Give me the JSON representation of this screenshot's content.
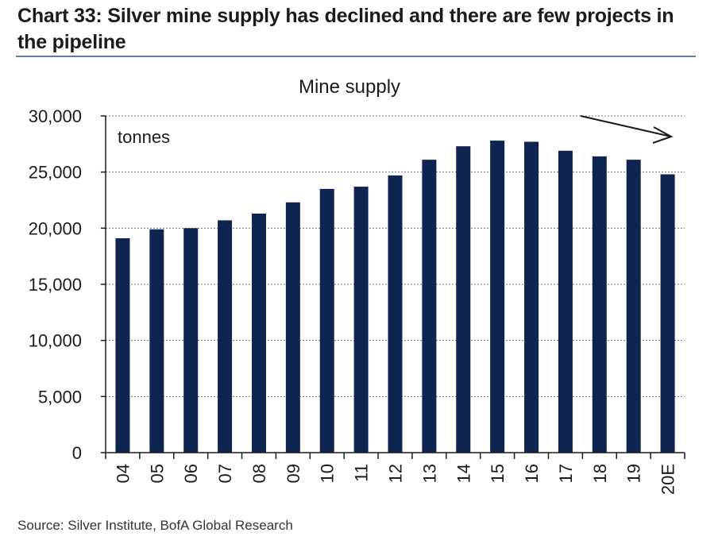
{
  "header": {
    "title": "Chart 33: Silver mine supply has declined and there are few projects in the pipeline"
  },
  "source": "Source: Silver Institute, BofA Global Research",
  "colors": {
    "bar": "#0d2550",
    "title_rule": "#5a7fb0",
    "grid": "#777777"
  },
  "chart_data": {
    "type": "bar",
    "title": "Mine supply",
    "unit_label": "tonnes",
    "xlabel": "",
    "ylabel": "",
    "categories": [
      "04",
      "05",
      "06",
      "07",
      "08",
      "09",
      "10",
      "11",
      "12",
      "13",
      "14",
      "15",
      "16",
      "17",
      "18",
      "19",
      "20E"
    ],
    "values": [
      19100,
      19900,
      20000,
      20700,
      21300,
      22300,
      23500,
      23700,
      24700,
      26100,
      27300,
      27800,
      27700,
      26900,
      26400,
      26100,
      24800
    ],
    "ylim": [
      0,
      30000
    ],
    "yticks": [
      0,
      5000,
      10000,
      15000,
      20000,
      25000,
      30000
    ],
    "ytick_labels": [
      "0",
      "5,000",
      "10,000",
      "15,000",
      "20,000",
      "25,000",
      "30,000"
    ],
    "grid": true,
    "annotation": "downward trend arrow"
  }
}
